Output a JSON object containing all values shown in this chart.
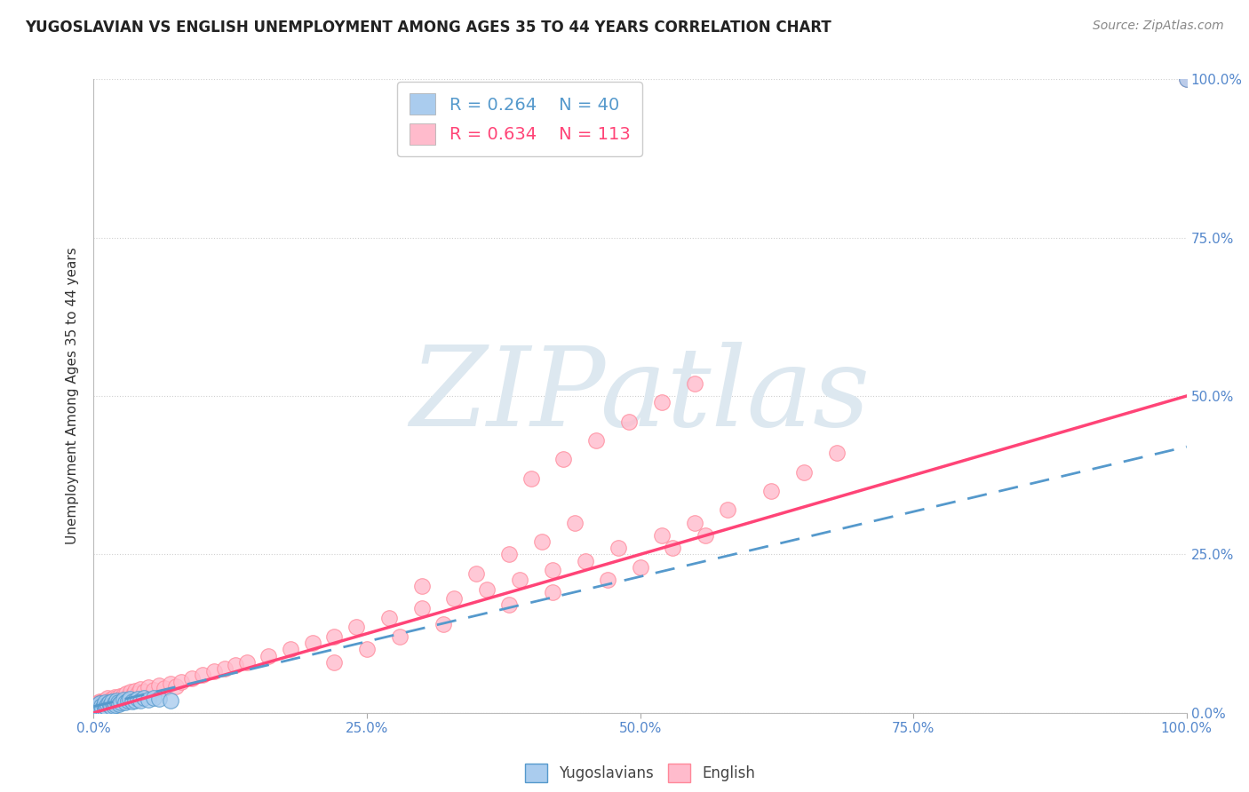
{
  "title": "YUGOSLAVIAN VS ENGLISH UNEMPLOYMENT AMONG AGES 35 TO 44 YEARS CORRELATION CHART",
  "source": "Source: ZipAtlas.com",
  "ylabel": "Unemployment Among Ages 35 to 44 years",
  "xlim": [
    0,
    1.0
  ],
  "ylim": [
    0,
    1.0
  ],
  "xticklabels": [
    "0.0%",
    "25.0%",
    "50.0%",
    "75.0%",
    "100.0%"
  ],
  "yticklabels_right": [
    "0.0%",
    "25.0%",
    "50.0%",
    "75.0%",
    "100.0%"
  ],
  "grid_color": "#d0d0d0",
  "background_color": "#ffffff",
  "watermark": "ZIPatlas",
  "watermark_color": "#dde8f0",
  "yugoslav_face_color": "#aaccee",
  "yugoslav_edge_color": "#5599cc",
  "english_face_color": "#ffbbcc",
  "english_edge_color": "#ff8899",
  "yugoslav_line_color": "#5599cc",
  "english_line_color": "#ff4477",
  "yugoslav_R": 0.264,
  "yugoslav_N": 40,
  "english_R": 0.634,
  "english_N": 113,
  "tick_color": "#5588cc",
  "label_color": "#333333",
  "yugoslav_x": [
    0.0,
    0.002,
    0.003,
    0.004,
    0.005,
    0.005,
    0.006,
    0.007,
    0.008,
    0.009,
    0.01,
    0.01,
    0.011,
    0.012,
    0.013,
    0.014,
    0.015,
    0.016,
    0.017,
    0.018,
    0.019,
    0.02,
    0.021,
    0.022,
    0.023,
    0.025,
    0.027,
    0.029,
    0.031,
    0.033,
    0.035,
    0.038,
    0.04,
    0.043,
    0.046,
    0.05,
    0.055,
    0.06,
    0.07,
    1.0
  ],
  "yugoslav_y": [
    0.005,
    0.008,
    0.004,
    0.012,
    0.009,
    0.015,
    0.006,
    0.011,
    0.007,
    0.013,
    0.005,
    0.017,
    0.01,
    0.008,
    0.014,
    0.016,
    0.012,
    0.009,
    0.018,
    0.011,
    0.015,
    0.013,
    0.019,
    0.016,
    0.014,
    0.017,
    0.021,
    0.016,
    0.019,
    0.022,
    0.018,
    0.02,
    0.022,
    0.019,
    0.023,
    0.021,
    0.024,
    0.022,
    0.02,
    1.0
  ],
  "english_x": [
    0.0,
    0.0,
    0.0,
    0.001,
    0.001,
    0.002,
    0.002,
    0.002,
    0.003,
    0.003,
    0.003,
    0.004,
    0.004,
    0.004,
    0.005,
    0.005,
    0.005,
    0.005,
    0.006,
    0.006,
    0.006,
    0.007,
    0.007,
    0.008,
    0.008,
    0.008,
    0.009,
    0.009,
    0.01,
    0.01,
    0.01,
    0.011,
    0.011,
    0.012,
    0.012,
    0.013,
    0.013,
    0.014,
    0.015,
    0.015,
    0.016,
    0.017,
    0.018,
    0.019,
    0.02,
    0.021,
    0.022,
    0.024,
    0.025,
    0.027,
    0.028,
    0.03,
    0.032,
    0.034,
    0.036,
    0.038,
    0.04,
    0.043,
    0.046,
    0.05,
    0.055,
    0.06,
    0.065,
    0.07,
    0.075,
    0.08,
    0.09,
    0.1,
    0.11,
    0.12,
    0.13,
    0.14,
    0.16,
    0.18,
    0.2,
    0.22,
    0.24,
    0.27,
    0.3,
    0.33,
    0.36,
    0.39,
    0.42,
    0.45,
    0.48,
    0.52,
    0.55,
    0.58,
    0.62,
    0.65,
    0.68,
    0.3,
    0.35,
    0.38,
    0.41,
    0.44,
    0.38,
    0.42,
    0.47,
    0.5,
    0.53,
    0.56,
    1.0,
    0.4,
    0.43,
    0.46,
    0.49,
    0.52,
    0.55,
    0.32,
    0.28,
    0.25,
    0.22
  ],
  "english_y": [
    0.003,
    0.007,
    0.01,
    0.005,
    0.009,
    0.004,
    0.008,
    0.012,
    0.006,
    0.011,
    0.015,
    0.007,
    0.013,
    0.009,
    0.005,
    0.01,
    0.014,
    0.018,
    0.008,
    0.012,
    0.016,
    0.009,
    0.015,
    0.011,
    0.017,
    0.006,
    0.013,
    0.019,
    0.01,
    0.015,
    0.02,
    0.012,
    0.018,
    0.014,
    0.021,
    0.016,
    0.023,
    0.018,
    0.013,
    0.02,
    0.016,
    0.022,
    0.018,
    0.025,
    0.019,
    0.024,
    0.021,
    0.026,
    0.022,
    0.028,
    0.024,
    0.03,
    0.027,
    0.033,
    0.029,
    0.035,
    0.031,
    0.037,
    0.033,
    0.04,
    0.036,
    0.043,
    0.039,
    0.046,
    0.042,
    0.049,
    0.055,
    0.06,
    0.065,
    0.07,
    0.075,
    0.08,
    0.09,
    0.1,
    0.11,
    0.12,
    0.135,
    0.15,
    0.165,
    0.18,
    0.195,
    0.21,
    0.225,
    0.24,
    0.26,
    0.28,
    0.3,
    0.32,
    0.35,
    0.38,
    0.41,
    0.2,
    0.22,
    0.25,
    0.27,
    0.3,
    0.17,
    0.19,
    0.21,
    0.23,
    0.26,
    0.28,
    1.0,
    0.37,
    0.4,
    0.43,
    0.46,
    0.49,
    0.52,
    0.14,
    0.12,
    0.1,
    0.08
  ],
  "eng_trend_x0": 0.0,
  "eng_trend_y0": 0.0,
  "eng_trend_x1": 1.0,
  "eng_trend_y1": 0.5,
  "yug_trend_x0": 0.0,
  "yug_trend_y0": 0.01,
  "yug_trend_x1": 1.0,
  "yug_trend_y1": 0.42
}
